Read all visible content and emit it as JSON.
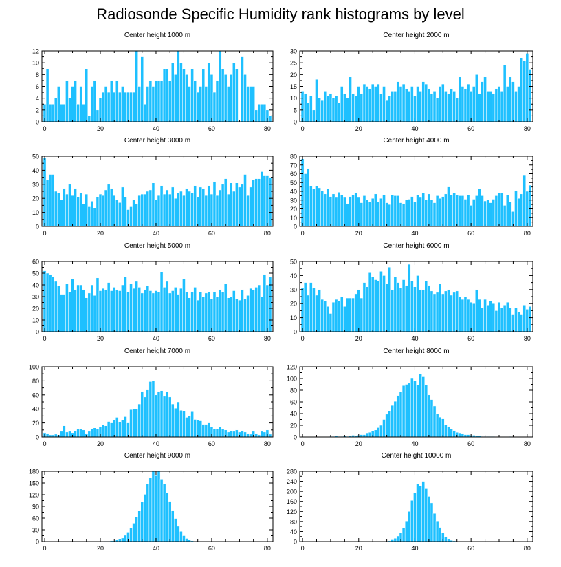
{
  "title": "Radiosonde Specific Humidity rank histograms by level",
  "colors": {
    "bar": "#1ec0ff",
    "bar_edge": "#ffffff",
    "axis": "#000000",
    "background": "#ffffff"
  },
  "chart_data": [
    {
      "type": "bar",
      "title": "Center height 1000 m",
      "xlim": [
        -1,
        82
      ],
      "xticks": [
        0,
        20,
        40,
        60,
        80
      ],
      "ylim": [
        0,
        12
      ],
      "yticks": [
        0,
        2,
        4,
        6,
        8,
        10,
        12
      ],
      "values": [
        3,
        9,
        3,
        3,
        4,
        6,
        3,
        3,
        7,
        4,
        6,
        7,
        3,
        6,
        3,
        9,
        1,
        6,
        7,
        2,
        4,
        5,
        6,
        5,
        7,
        5,
        7,
        5,
        6,
        5,
        5,
        5,
        5,
        12,
        6,
        11,
        3,
        6,
        7,
        6,
        7,
        7,
        7,
        9,
        9,
        7,
        10,
        8,
        12,
        10,
        9,
        8,
        6,
        9,
        7,
        5,
        6,
        9,
        6,
        10,
        8,
        5,
        7,
        12,
        9,
        8,
        6,
        8,
        10,
        9,
        0,
        11,
        8,
        6,
        6,
        6,
        2,
        3,
        3,
        3,
        2,
        1
      ]
    },
    {
      "type": "bar",
      "title": "Center height 2000 m",
      "xlim": [
        -1,
        82
      ],
      "xticks": [
        0,
        20,
        40,
        60,
        80
      ],
      "ylim": [
        0,
        30
      ],
      "yticks": [
        0,
        5,
        10,
        15,
        20,
        25,
        30
      ],
      "values": [
        13,
        12,
        8,
        11,
        5,
        18,
        10,
        9,
        13,
        11,
        12,
        10,
        11,
        8,
        15,
        12,
        10,
        19,
        12,
        11,
        15,
        12,
        16,
        15,
        14,
        16,
        15,
        16,
        12,
        15,
        9,
        11,
        13,
        13,
        17,
        15,
        16,
        14,
        13,
        15,
        11,
        15,
        13,
        17,
        16,
        14,
        12,
        13,
        10,
        15,
        16,
        13,
        12,
        14,
        13,
        10,
        19,
        15,
        14,
        16,
        13,
        15,
        20,
        12,
        17,
        19,
        13,
        13,
        12,
        14,
        15,
        13,
        24,
        15,
        19,
        17,
        13,
        15,
        27,
        26,
        29,
        22
      ]
    },
    {
      "type": "bar",
      "title": "Center height 3000 m",
      "xlim": [
        -1,
        82
      ],
      "xticks": [
        0,
        20,
        40,
        60,
        80
      ],
      "ylim": [
        0,
        50
      ],
      "yticks": [
        0,
        10,
        20,
        30,
        40,
        50
      ],
      "values": [
        49,
        33,
        37,
        37,
        25,
        24,
        19,
        27,
        23,
        30,
        22,
        27,
        21,
        24,
        16,
        23,
        14,
        18,
        13,
        21,
        23,
        22,
        26,
        30,
        27,
        22,
        19,
        17,
        28,
        21,
        12,
        14,
        19,
        16,
        22,
        23,
        23,
        25,
        26,
        31,
        19,
        22,
        29,
        23,
        26,
        23,
        28,
        20,
        24,
        25,
        22,
        27,
        25,
        24,
        29,
        21,
        28,
        27,
        22,
        29,
        23,
        32,
        22,
        26,
        30,
        34,
        23,
        31,
        25,
        31,
        28,
        30,
        37,
        22,
        28,
        33,
        34,
        34,
        39,
        36,
        36,
        35
      ]
    },
    {
      "type": "bar",
      "title": "Center height 4000 m",
      "xlim": [
        -1,
        82
      ],
      "xticks": [
        0,
        20,
        40,
        60,
        80
      ],
      "ylim": [
        0,
        80
      ],
      "yticks": [
        0,
        10,
        20,
        30,
        40,
        50,
        60,
        70,
        80
      ],
      "values": [
        77,
        60,
        66,
        46,
        43,
        46,
        44,
        41,
        37,
        43,
        34,
        37,
        33,
        39,
        36,
        33,
        26,
        34,
        36,
        38,
        33,
        27,
        35,
        30,
        28,
        32,
        37,
        28,
        32,
        36,
        27,
        25,
        36,
        35,
        35,
        27,
        26,
        30,
        31,
        34,
        28,
        36,
        33,
        38,
        30,
        37,
        30,
        27,
        35,
        32,
        34,
        37,
        45,
        36,
        38,
        36,
        35,
        35,
        31,
        36,
        24,
        31,
        35,
        43,
        35,
        29,
        30,
        27,
        31,
        35,
        38,
        38,
        24,
        36,
        28,
        17,
        41,
        32,
        37,
        58,
        40,
        47
      ]
    },
    {
      "type": "bar",
      "title": "Center height 5000 m",
      "xlim": [
        -1,
        82
      ],
      "xticks": [
        0,
        20,
        40,
        60,
        80
      ],
      "ylim": [
        0,
        60
      ],
      "yticks": [
        0,
        10,
        20,
        30,
        40,
        50,
        60
      ],
      "values": [
        52,
        50,
        49,
        47,
        43,
        39,
        32,
        32,
        41,
        34,
        45,
        36,
        40,
        40,
        36,
        29,
        33,
        40,
        31,
        46,
        35,
        37,
        36,
        42,
        35,
        38,
        36,
        35,
        40,
        47,
        34,
        41,
        37,
        43,
        38,
        33,
        36,
        39,
        35,
        33,
        35,
        34,
        51,
        38,
        43,
        33,
        35,
        38,
        32,
        37,
        45,
        34,
        29,
        34,
        38,
        27,
        34,
        30,
        33,
        34,
        28,
        34,
        30,
        36,
        34,
        41,
        29,
        30,
        35,
        28,
        27,
        36,
        28,
        31,
        37,
        36,
        38,
        40,
        30,
        49,
        40,
        47
      ]
    },
    {
      "type": "bar",
      "title": "Center height 6000 m",
      "xlim": [
        -1,
        82
      ],
      "xticks": [
        0,
        20,
        40,
        60,
        80
      ],
      "ylim": [
        0,
        50
      ],
      "yticks": [
        0,
        10,
        20,
        30,
        40,
        50
      ],
      "values": [
        31,
        35,
        26,
        35,
        31,
        26,
        30,
        23,
        22,
        18,
        13,
        21,
        23,
        22,
        25,
        18,
        24,
        24,
        24,
        27,
        30,
        24,
        35,
        32,
        42,
        39,
        37,
        36,
        43,
        40,
        34,
        46,
        30,
        39,
        35,
        31,
        37,
        33,
        48,
        36,
        32,
        40,
        30,
        30,
        36,
        33,
        29,
        27,
        28,
        34,
        27,
        29,
        30,
        26,
        28,
        29,
        25,
        23,
        25,
        23,
        21,
        20,
        30,
        23,
        17,
        23,
        19,
        22,
        20,
        15,
        21,
        17,
        19,
        21,
        17,
        12,
        17,
        14,
        12,
        19,
        16,
        18
      ]
    },
    {
      "type": "bar",
      "title": "Center height 7000 m",
      "xlim": [
        -1,
        82
      ],
      "xticks": [
        0,
        20,
        40,
        60,
        80
      ],
      "ylim": [
        0,
        100
      ],
      "yticks": [
        0,
        20,
        40,
        60,
        80,
        100
      ],
      "values": [
        6,
        5,
        3,
        3,
        4,
        3,
        8,
        16,
        7,
        8,
        6,
        9,
        11,
        11,
        10,
        5,
        8,
        12,
        13,
        11,
        15,
        17,
        16,
        22,
        20,
        24,
        28,
        21,
        24,
        29,
        20,
        39,
        40,
        40,
        47,
        65,
        57,
        67,
        79,
        80,
        60,
        65,
        66,
        58,
        64,
        57,
        47,
        41,
        50,
        38,
        37,
        28,
        30,
        36,
        25,
        24,
        23,
        18,
        18,
        20,
        14,
        12,
        12,
        14,
        11,
        10,
        7,
        9,
        8,
        10,
        7,
        9,
        7,
        5,
        4,
        8,
        5,
        3,
        8,
        7,
        10,
        4
      ]
    },
    {
      "type": "bar",
      "title": "Center height 8000 m",
      "xlim": [
        -1,
        82
      ],
      "xticks": [
        0,
        20,
        40,
        60,
        80
      ],
      "ylim": [
        0,
        120
      ],
      "yticks": [
        0,
        20,
        40,
        60,
        80,
        100,
        120
      ],
      "values": [
        0,
        0,
        0,
        0,
        0,
        0,
        0,
        0,
        0,
        0,
        1,
        1,
        2,
        1,
        1,
        2,
        1,
        2,
        3,
        2,
        3,
        4,
        4,
        7,
        8,
        10,
        12,
        16,
        20,
        30,
        39,
        44,
        54,
        61,
        71,
        77,
        88,
        90,
        92,
        100,
        96,
        89,
        108,
        103,
        89,
        72,
        64,
        53,
        40,
        34,
        31,
        21,
        18,
        14,
        11,
        8,
        7,
        6,
        4,
        4,
        3,
        3,
        2,
        2,
        1,
        1,
        1,
        1,
        1,
        0,
        0,
        0,
        0,
        0,
        1,
        0,
        0,
        0,
        0,
        0,
        0,
        0
      ]
    },
    {
      "type": "bar",
      "title": "Center height 9000 m",
      "xlim": [
        -1,
        82
      ],
      "xticks": [
        0,
        20,
        40,
        60,
        80
      ],
      "ylim": [
        0,
        180
      ],
      "yticks": [
        0,
        30,
        60,
        90,
        120,
        150,
        180
      ],
      "values": [
        0,
        0,
        0,
        0,
        0,
        0,
        0,
        0,
        0,
        0,
        0,
        0,
        0,
        0,
        0,
        0,
        0,
        0,
        0,
        0,
        0,
        0,
        1,
        1,
        2,
        2,
        4,
        6,
        9,
        16,
        24,
        35,
        47,
        63,
        79,
        101,
        121,
        148,
        163,
        182,
        169,
        180,
        160,
        147,
        124,
        103,
        80,
        59,
        39,
        26,
        15,
        8,
        4,
        2,
        1,
        1,
        0,
        0,
        0,
        0,
        0,
        0,
        0,
        0,
        0,
        0,
        0,
        0,
        0,
        0,
        0,
        0,
        0,
        0,
        0,
        0,
        0,
        0,
        0,
        0,
        0,
        0
      ]
    },
    {
      "type": "bar",
      "title": "Center height 10000 m",
      "xlim": [
        -1,
        82
      ],
      "xticks": [
        0,
        20,
        40,
        60,
        80
      ],
      "ylim": [
        0,
        280
      ],
      "yticks": [
        0,
        40,
        80,
        120,
        160,
        200,
        240,
        280
      ],
      "yticklabels": [
        "0",
        "40",
        "80",
        "120",
        "160",
        "200",
        "240",
        "280"
      ],
      "values": [
        0,
        0,
        0,
        0,
        0,
        0,
        0,
        0,
        0,
        0,
        0,
        0,
        0,
        0,
        0,
        0,
        0,
        0,
        0,
        0,
        0,
        0,
        0,
        0,
        0,
        0,
        0,
        0,
        0,
        0,
        1,
        3,
        7,
        13,
        22,
        35,
        55,
        82,
        120,
        164,
        195,
        230,
        222,
        240,
        213,
        180,
        154,
        112,
        82,
        56,
        35,
        20,
        10,
        5,
        3,
        1,
        0,
        0,
        0,
        0,
        0,
        0,
        0,
        0,
        0,
        0,
        0,
        0,
        0,
        0,
        0,
        0,
        0,
        0,
        0,
        0,
        0,
        0,
        0,
        0,
        0,
        0
      ]
    }
  ]
}
